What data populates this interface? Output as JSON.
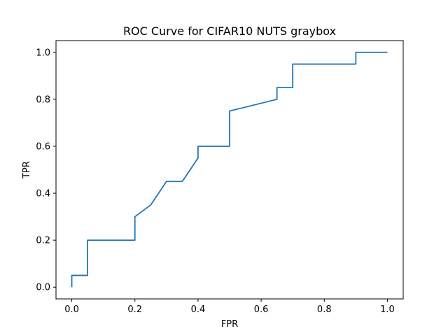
{
  "chart_data": {
    "type": "line",
    "title": "ROC Curve for CIFAR10 NUTS graybox",
    "xlabel": "FPR",
    "ylabel": "TPR",
    "xlim": [
      -0.05,
      1.05
    ],
    "ylim": [
      -0.05,
      1.05
    ],
    "xticks": [
      "0.0",
      "0.2",
      "0.4",
      "0.6",
      "0.8",
      "1.0"
    ],
    "yticks": [
      "0.0",
      "0.2",
      "0.4",
      "0.6",
      "0.8",
      "1.0"
    ],
    "grid": false,
    "line_color": "#1f77b4",
    "series": [
      {
        "x": [
          0.0,
          0.0,
          0.05,
          0.05,
          0.2,
          0.2,
          0.25,
          0.3,
          0.35,
          0.4,
          0.4,
          0.5,
          0.5,
          0.65,
          0.65,
          0.7,
          0.7,
          0.9,
          0.9,
          1.0
        ],
        "y": [
          0.0,
          0.05,
          0.05,
          0.2,
          0.2,
          0.3,
          0.35,
          0.45,
          0.45,
          0.55,
          0.6,
          0.6,
          0.75,
          0.8,
          0.85,
          0.85,
          0.95,
          0.95,
          1.0,
          1.0
        ]
      }
    ]
  }
}
